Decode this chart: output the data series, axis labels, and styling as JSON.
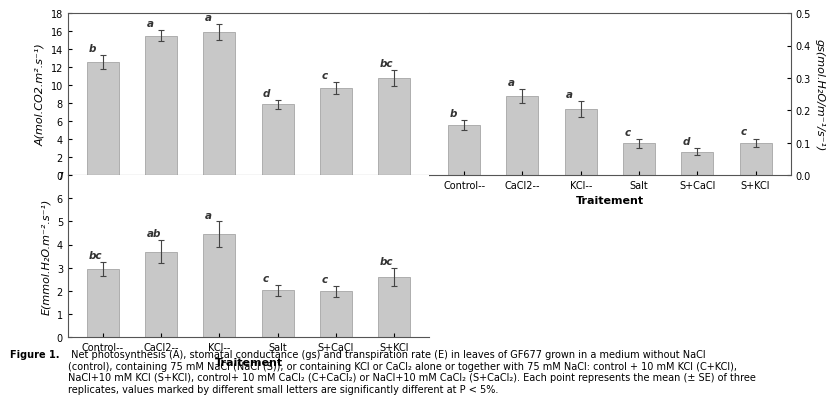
{
  "treatments": [
    "Control--",
    "CaCl2--",
    "KCl--",
    "Salt",
    "S+CaCl",
    "S+KCl"
  ],
  "A_values": [
    12.6,
    15.5,
    15.9,
    7.9,
    9.7,
    10.8
  ],
  "A_errors": [
    0.8,
    0.6,
    0.9,
    0.5,
    0.7,
    0.9
  ],
  "A_letters": [
    "b",
    "a",
    "a",
    "d",
    "c",
    "bc"
  ],
  "A_ylabel": "A(mol.CO2.m².s⁻¹)",
  "A_ylim": [
    0,
    18
  ],
  "A_yticks": [
    0,
    2,
    4,
    6,
    8,
    10,
    12,
    14,
    16,
    18
  ],
  "gs_values": [
    0.155,
    0.245,
    0.205,
    0.098,
    0.073,
    0.1
  ],
  "gs_errors": [
    0.015,
    0.022,
    0.025,
    0.014,
    0.01,
    0.013
  ],
  "gs_letters": [
    "b",
    "a",
    "a",
    "c",
    "d",
    "c"
  ],
  "gs_ylabel": "gs(mol.H₂O/m⁻¹/s⁻¹)",
  "gs_ylim": [
    0.0,
    0.5
  ],
  "gs_yticks": [
    0.0,
    0.1,
    0.2,
    0.3,
    0.4,
    0.5
  ],
  "gs_xlabel": "Traitement",
  "E_values": [
    2.95,
    3.7,
    4.45,
    2.02,
    1.98,
    2.6
  ],
  "E_errors": [
    0.3,
    0.5,
    0.55,
    0.25,
    0.25,
    0.4
  ],
  "E_letters": [
    "bc",
    "ab",
    "a",
    "c",
    "c",
    "bc"
  ],
  "E_ylabel": "E(mmol.H₂O.m⁻².s⁻¹)",
  "E_ylim": [
    0,
    7
  ],
  "E_yticks": [
    0,
    1,
    2,
    3,
    4,
    5,
    6,
    7
  ],
  "E_xlabel": "Traitement",
  "bar_color": "#c8c8c8",
  "bar_edge_color": "#999999",
  "bar_width": 0.55,
  "error_color": "#444444",
  "letter_color": "#333333",
  "letter_fontsize": 7.5,
  "tick_fontsize": 7,
  "label_fontsize": 8,
  "xlabel_fontsize": 8,
  "caption_bold": "Figure 1.",
  "caption_rest": " Net photosynthesis (A), stomatal conductance (gs) and transpiration rate (E) in leaves of GF677 grown in a medium without NaCl\n(control), containing 75 mM NaCl (NaCl (S)), or containing KCl or CaCl₂ alone or together with 75 mM NaCl: control + 10 mM KCl (C+KCl),\nNaCl+10 mM KCl (S+KCl), control+ 10 mM CaCl₂ (C+CaCl₂) or NaCl+10 mM CaCl₂ (S+CaCl₂). Each point represents the mean (± SE) of three\nreplicates, values marked by different small letters are significantly different at P < 5%."
}
